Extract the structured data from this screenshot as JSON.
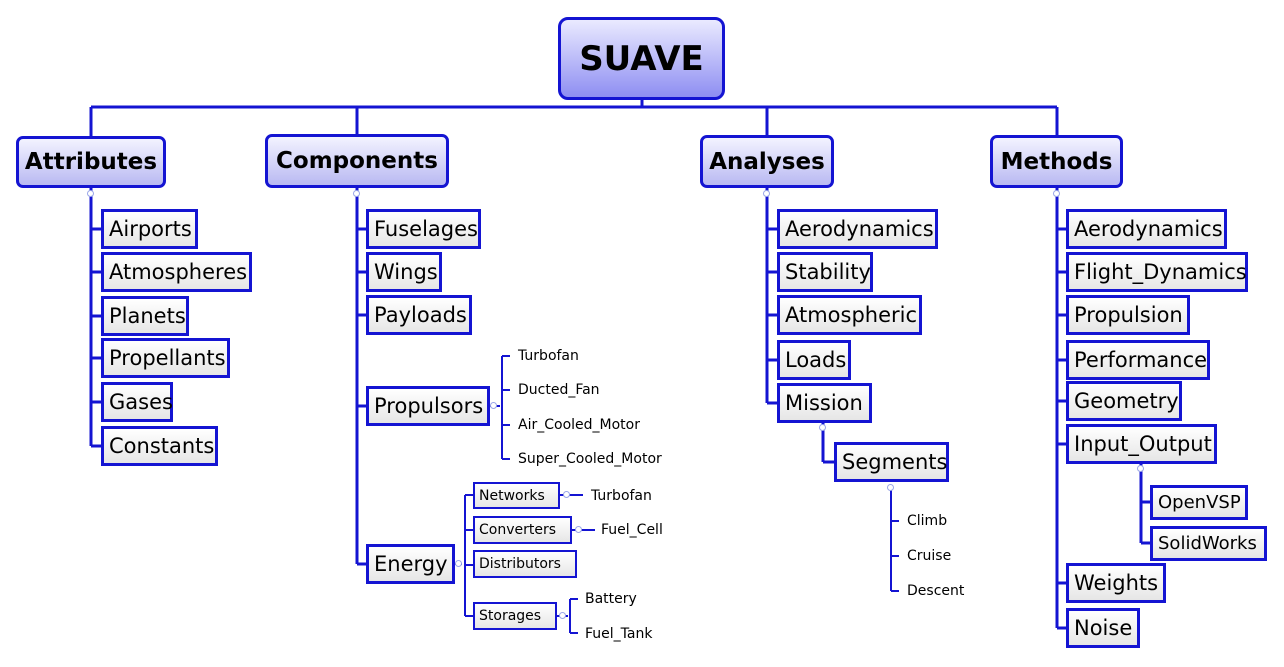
{
  "root": "SUAVE",
  "attributes": {
    "label": "Attributes",
    "items": [
      "Airports",
      "Atmospheres",
      "Planets",
      "Propellants",
      "Gases",
      "Constants"
    ]
  },
  "components": {
    "label": "Components",
    "items": [
      "Fuselages",
      "Wings",
      "Payloads"
    ],
    "propulsors": {
      "label": "Propulsors",
      "items": [
        "Turbofan",
        "Ducted_Fan",
        "Air_Cooled_Motor",
        "Super_Cooled_Motor"
      ]
    },
    "energy": {
      "label": "Energy",
      "networks": {
        "label": "Networks",
        "child": "Turbofan"
      },
      "converters": {
        "label": "Converters",
        "child": "Fuel_Cell"
      },
      "distributors": {
        "label": "Distributors"
      },
      "storages": {
        "label": "Storages",
        "items": [
          "Battery",
          "Fuel_Tank"
        ]
      }
    }
  },
  "analyses": {
    "label": "Analyses",
    "items": [
      "Aerodynamics",
      "Stability",
      "Atmospheric",
      "Loads",
      "Mission"
    ],
    "segments": {
      "label": "Segments",
      "items": [
        "Climb",
        "Cruise",
        "Descent"
      ]
    }
  },
  "methods": {
    "label": "Methods",
    "items": [
      "Aerodynamics",
      "Flight_Dynamics",
      "Propulsion",
      "Performance",
      "Geometry",
      "Input_Output",
      "Weights",
      "Noise"
    ],
    "input_output_children": [
      "OpenVSP",
      "SolidWorks"
    ]
  },
  "colors": {
    "line": "#1414d2",
    "root_fill": "#8e8ef2",
    "category_fill": "#b9b9f2"
  }
}
